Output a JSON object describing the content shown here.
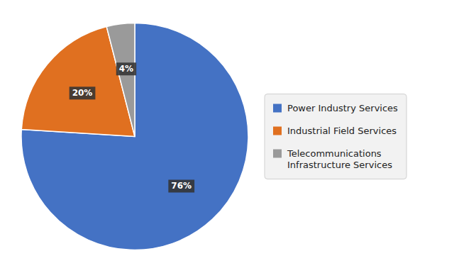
{
  "chart_data": {
    "type": "pie",
    "categories": [
      "Power Industry Services",
      "Industrial Field Services",
      "Telecommunications\nInfrastructure Services"
    ],
    "values": [
      76,
      20,
      4
    ],
    "value_labels": [
      "76%",
      "20%",
      "4%"
    ],
    "colors": [
      "#4472C4",
      "#E07020",
      "#9A9A9A"
    ],
    "data_labels": true,
    "legend": "right"
  }
}
